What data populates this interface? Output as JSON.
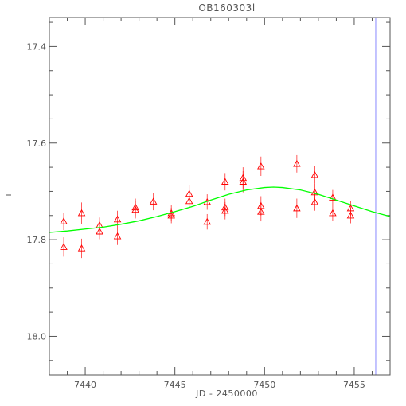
{
  "chart_data": {
    "type": "scatter",
    "title": "OB160303l",
    "xlabel": "JD - 2450000",
    "ylabel": "",
    "xlim": [
      7438.0,
      7457.0
    ],
    "ylim": [
      18.08,
      17.34
    ],
    "y_inverted": true,
    "grid": false,
    "x_ticks": [
      7440,
      7445,
      7450,
      7455
    ],
    "x_tick_labels": [
      "7440",
      "7445",
      "7450",
      "7455"
    ],
    "y_ticks": [
      17.4,
      17.6,
      17.8,
      18.0
    ],
    "y_tick_labels": [
      "17.4",
      "17.6",
      "17.8",
      "18.0"
    ],
    "y_minor_step": 0.05,
    "x_minor_step": 1,
    "series": [
      {
        "kind": "points",
        "color": "#ff0000",
        "marker": "triangle",
        "points": [
          {
            "x": 7438.8,
            "y": 17.762,
            "err": 0.018
          },
          {
            "x": 7438.8,
            "y": 17.815,
            "err": 0.02
          },
          {
            "x": 7439.8,
            "y": 17.745,
            "err": 0.022
          },
          {
            "x": 7439.8,
            "y": 17.818,
            "err": 0.02
          },
          {
            "x": 7440.8,
            "y": 17.77,
            "err": 0.016
          },
          {
            "x": 7440.8,
            "y": 17.783,
            "err": 0.016
          },
          {
            "x": 7441.8,
            "y": 17.758,
            "err": 0.018
          },
          {
            "x": 7441.8,
            "y": 17.793,
            "err": 0.018
          },
          {
            "x": 7442.8,
            "y": 17.733,
            "err": 0.018
          },
          {
            "x": 7442.8,
            "y": 17.738,
            "err": 0.018
          },
          {
            "x": 7443.8,
            "y": 17.721,
            "err": 0.018
          },
          {
            "x": 7444.8,
            "y": 17.745,
            "err": 0.016
          },
          {
            "x": 7444.8,
            "y": 17.75,
            "err": 0.016
          },
          {
            "x": 7445.8,
            "y": 17.705,
            "err": 0.018
          },
          {
            "x": 7445.8,
            "y": 17.72,
            "err": 0.018
          },
          {
            "x": 7446.8,
            "y": 17.722,
            "err": 0.016
          },
          {
            "x": 7446.8,
            "y": 17.763,
            "err": 0.016
          },
          {
            "x": 7447.8,
            "y": 17.68,
            "err": 0.018
          },
          {
            "x": 7447.8,
            "y": 17.733,
            "err": 0.018
          },
          {
            "x": 7447.8,
            "y": 17.74,
            "err": 0.018
          },
          {
            "x": 7448.8,
            "y": 17.672,
            "err": 0.022
          },
          {
            "x": 7448.8,
            "y": 17.68,
            "err": 0.022
          },
          {
            "x": 7449.8,
            "y": 17.648,
            "err": 0.02
          },
          {
            "x": 7449.8,
            "y": 17.73,
            "err": 0.02
          },
          {
            "x": 7449.8,
            "y": 17.742,
            "err": 0.02
          },
          {
            "x": 7451.8,
            "y": 17.643,
            "err": 0.018
          },
          {
            "x": 7451.8,
            "y": 17.735,
            "err": 0.02
          },
          {
            "x": 7452.8,
            "y": 17.666,
            "err": 0.018
          },
          {
            "x": 7452.8,
            "y": 17.702,
            "err": 0.018
          },
          {
            "x": 7452.8,
            "y": 17.722,
            "err": 0.018
          },
          {
            "x": 7453.8,
            "y": 17.713,
            "err": 0.016
          },
          {
            "x": 7453.8,
            "y": 17.745,
            "err": 0.016
          },
          {
            "x": 7454.8,
            "y": 17.735,
            "err": 0.016
          },
          {
            "x": 7454.8,
            "y": 17.75,
            "err": 0.016
          }
        ]
      },
      {
        "kind": "line",
        "color": "#00ff00",
        "x": [
          7438.0,
          7439.0,
          7440.0,
          7441.0,
          7442.0,
          7443.0,
          7444.0,
          7445.0,
          7446.0,
          7447.0,
          7448.0,
          7449.0,
          7450.0,
          7450.5,
          7451.0,
          7452.0,
          7453.0,
          7454.0,
          7455.0,
          7456.0,
          7457.0
        ],
        "y": [
          17.785,
          17.782,
          17.778,
          17.774,
          17.768,
          17.761,
          17.752,
          17.742,
          17.731,
          17.718,
          17.706,
          17.697,
          17.692,
          17.691,
          17.692,
          17.697,
          17.706,
          17.718,
          17.73,
          17.742,
          17.752
        ]
      }
    ],
    "vline": {
      "x": 7456.2,
      "color": "#8888ff"
    }
  }
}
